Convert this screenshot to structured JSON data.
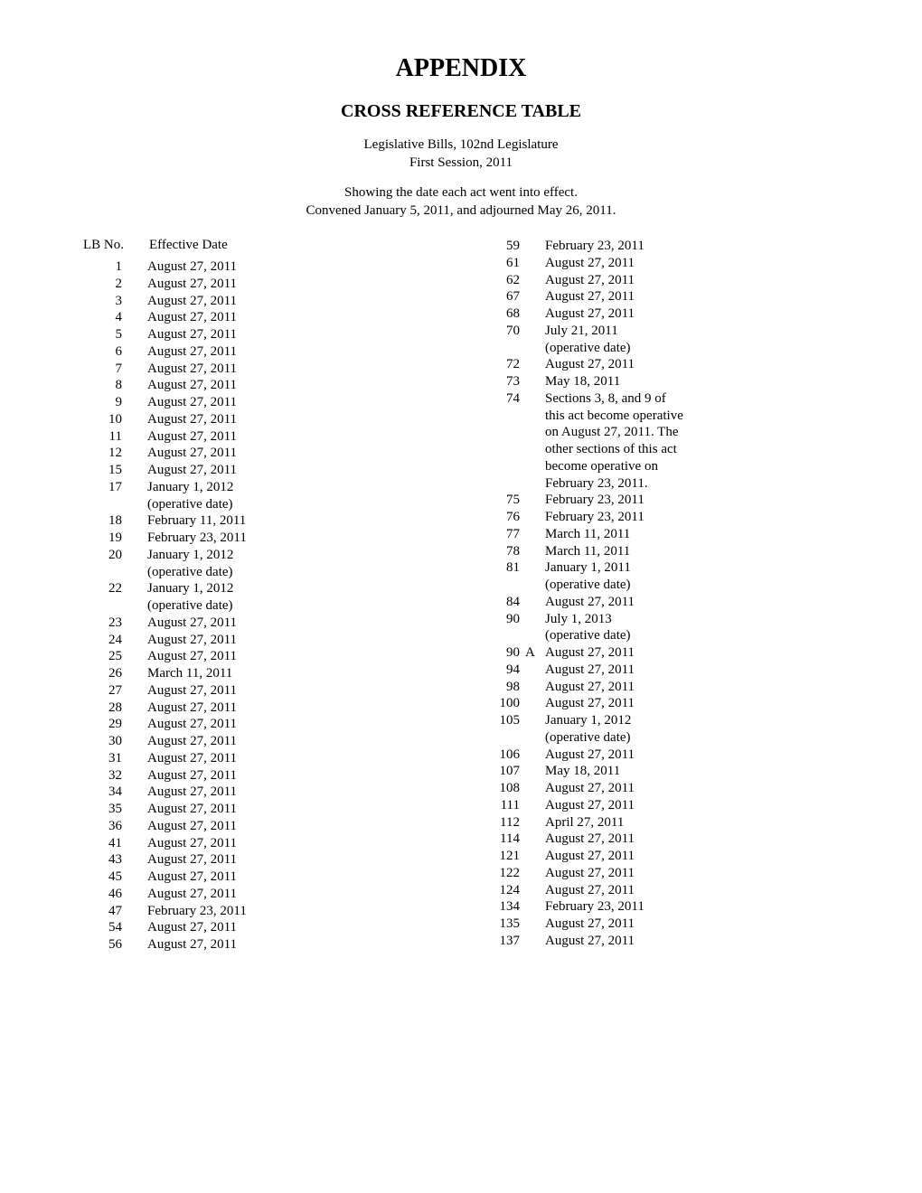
{
  "title": "APPENDIX",
  "subtitle": "CROSS REFERENCE TABLE",
  "header_line1": "Legislative Bills, 102nd Legislature",
  "header_line2": "First Session, 2011",
  "header_line3": "Showing the date each act went into effect.",
  "header_line4": "Convened January 5, 2011, and adjourned May 26, 2011.",
  "col_headers": {
    "lb": "LB  No.",
    "date": "Effective Date"
  },
  "left_column": [
    {
      "lb": "1",
      "suffix": "",
      "date": "August 27, 2011"
    },
    {
      "lb": "2",
      "suffix": "",
      "date": "August 27, 2011"
    },
    {
      "lb": "3",
      "suffix": "",
      "date": "August 27, 2011"
    },
    {
      "lb": "4",
      "suffix": "",
      "date": "August 27, 2011"
    },
    {
      "lb": "5",
      "suffix": "",
      "date": "August 27, 2011"
    },
    {
      "lb": "6",
      "suffix": "",
      "date": "August 27, 2011"
    },
    {
      "lb": "7",
      "suffix": "",
      "date": "August 27, 2011"
    },
    {
      "lb": "8",
      "suffix": "",
      "date": "August 27, 2011"
    },
    {
      "lb": "9",
      "suffix": "",
      "date": "August 27, 2011"
    },
    {
      "lb": "10",
      "suffix": "",
      "date": "August 27, 2011"
    },
    {
      "lb": "11",
      "suffix": "",
      "date": "August 27, 2011"
    },
    {
      "lb": "12",
      "suffix": "",
      "date": "August 27, 2011"
    },
    {
      "lb": "15",
      "suffix": "",
      "date": "August 27, 2011"
    },
    {
      "lb": "17",
      "suffix": "",
      "date": "January 1, 2012"
    },
    {
      "lb": "",
      "suffix": "",
      "date": "(operative date)"
    },
    {
      "lb": "18",
      "suffix": "",
      "date": "February 11, 2011"
    },
    {
      "lb": "19",
      "suffix": "",
      "date": "February 23, 2011"
    },
    {
      "lb": "20",
      "suffix": "",
      "date": "January 1, 2012"
    },
    {
      "lb": "",
      "suffix": "",
      "date": "(operative date)"
    },
    {
      "lb": "22",
      "suffix": "",
      "date": "January  1, 2012"
    },
    {
      "lb": "",
      "suffix": "",
      "date": "(operative date)"
    },
    {
      "lb": "23",
      "suffix": "",
      "date": "August 27, 2011"
    },
    {
      "lb": "24",
      "suffix": "",
      "date": "August 27, 2011"
    },
    {
      "lb": "25",
      "suffix": "",
      "date": "August 27, 2011"
    },
    {
      "lb": "26",
      "suffix": "",
      "date": "March 11, 2011"
    },
    {
      "lb": "27",
      "suffix": "",
      "date": "August 27, 2011"
    },
    {
      "lb": "28",
      "suffix": "",
      "date": "August 27, 2011"
    },
    {
      "lb": "29",
      "suffix": "",
      "date": "August 27, 2011"
    },
    {
      "lb": "30",
      "suffix": "",
      "date": "August 27, 2011"
    },
    {
      "lb": "31",
      "suffix": "",
      "date": "August 27, 2011"
    },
    {
      "lb": "32",
      "suffix": "",
      "date": "August 27, 2011"
    },
    {
      "lb": "34",
      "suffix": "",
      "date": "August 27, 2011"
    },
    {
      "lb": "35",
      "suffix": "",
      "date": "August 27, 2011"
    },
    {
      "lb": "36",
      "suffix": "",
      "date": "August 27, 2011"
    },
    {
      "lb": "41",
      "suffix": "",
      "date": "August 27, 2011"
    },
    {
      "lb": "43",
      "suffix": "",
      "date": "August 27, 2011"
    },
    {
      "lb": "45",
      "suffix": "",
      "date": "August 27, 2011"
    },
    {
      "lb": "46",
      "suffix": "",
      "date": "August 27, 2011"
    },
    {
      "lb": "47",
      "suffix": "",
      "date": "February 23, 2011"
    },
    {
      "lb": "54",
      "suffix": "",
      "date": "August 27, 2011"
    },
    {
      "lb": "56",
      "suffix": "",
      "date": "August 27, 2011"
    }
  ],
  "right_column": [
    {
      "lb": "59",
      "suffix": "",
      "date": "February 23, 2011"
    },
    {
      "lb": "61",
      "suffix": "",
      "date": "August 27, 2011"
    },
    {
      "lb": "62",
      "suffix": "",
      "date": "August 27, 2011"
    },
    {
      "lb": "67",
      "suffix": "",
      "date": "August 27, 2011"
    },
    {
      "lb": "68",
      "suffix": "",
      "date": "August 27, 2011"
    },
    {
      "lb": "70",
      "suffix": "",
      "date": "July 21, 2011"
    },
    {
      "lb": "",
      "suffix": "",
      "date": "(operative date)"
    },
    {
      "lb": "72",
      "suffix": "",
      "date": "August 27, 2011"
    },
    {
      "lb": "73",
      "suffix": "",
      "date": "May 18, 2011"
    },
    {
      "lb": "74",
      "suffix": "",
      "date": "Sections 3, 8, and 9 of"
    },
    {
      "lb": "",
      "suffix": "",
      "date": "this act become operative"
    },
    {
      "lb": "",
      "suffix": "",
      "date": "on August 27, 2011. The"
    },
    {
      "lb": "",
      "suffix": "",
      "date": "other sections of this act"
    },
    {
      "lb": "",
      "suffix": "",
      "date": "become operative on"
    },
    {
      "lb": "",
      "suffix": "",
      "date": "February 23, 2011."
    },
    {
      "lb": "75",
      "suffix": "",
      "date": "February 23, 2011"
    },
    {
      "lb": "76",
      "suffix": "",
      "date": "February 23, 2011"
    },
    {
      "lb": "77",
      "suffix": "",
      "date": "March 11, 2011"
    },
    {
      "lb": "78",
      "suffix": "",
      "date": "March 11, 2011"
    },
    {
      "lb": "81",
      "suffix": "",
      "date": "January 1, 2011"
    },
    {
      "lb": "",
      "suffix": "",
      "date": "(operative date)"
    },
    {
      "lb": "84",
      "suffix": "",
      "date": "August 27, 2011"
    },
    {
      "lb": "90",
      "suffix": "",
      "date": "July 1, 2013"
    },
    {
      "lb": "",
      "suffix": "",
      "date": "(operative date)"
    },
    {
      "lb": "90",
      "suffix": "A",
      "date": "August 27, 2011"
    },
    {
      "lb": "94",
      "suffix": "",
      "date": "August 27, 2011"
    },
    {
      "lb": "98",
      "suffix": "",
      "date": "August 27, 2011"
    },
    {
      "lb": "100",
      "suffix": "",
      "date": "August 27, 2011"
    },
    {
      "lb": "105",
      "suffix": "",
      "date": "January 1, 2012"
    },
    {
      "lb": "",
      "suffix": "",
      "date": "(operative date)"
    },
    {
      "lb": "106",
      "suffix": "",
      "date": "August 27, 2011"
    },
    {
      "lb": "107",
      "suffix": "",
      "date": "May 18, 2011"
    },
    {
      "lb": "108",
      "suffix": "",
      "date": "August 27, 2011"
    },
    {
      "lb": "111",
      "suffix": "",
      "date": "August 27, 2011"
    },
    {
      "lb": "112",
      "suffix": "",
      "date": "April 27, 2011"
    },
    {
      "lb": "114",
      "suffix": "",
      "date": "August 27, 2011"
    },
    {
      "lb": "121",
      "suffix": "",
      "date": "August 27, 2011"
    },
    {
      "lb": "122",
      "suffix": "",
      "date": "August 27, 2011"
    },
    {
      "lb": "124",
      "suffix": "",
      "date": "August 27, 2011"
    },
    {
      "lb": "134",
      "suffix": "",
      "date": "February 23, 2011"
    },
    {
      "lb": "135",
      "suffix": "",
      "date": "August 27, 2011"
    },
    {
      "lb": "137",
      "suffix": "",
      "date": "August 27, 2011"
    }
  ],
  "styles": {
    "background_color": "#ffffff",
    "text_color": "#000000",
    "font_family": "Times New Roman, serif",
    "title_fontsize": 28,
    "subtitle_fontsize": 20,
    "body_fontsize": 15
  }
}
